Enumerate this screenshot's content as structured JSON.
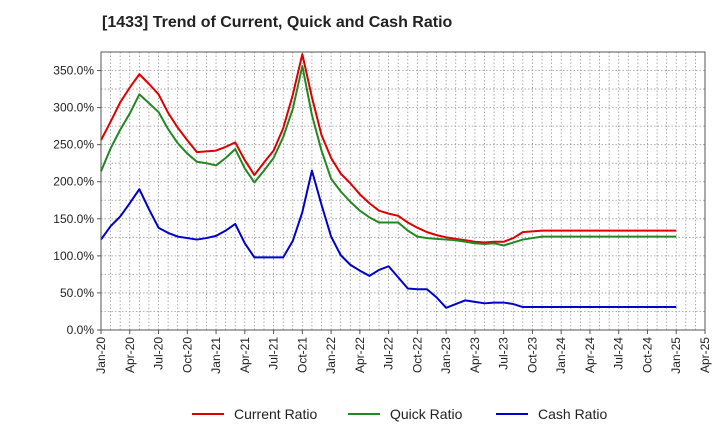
{
  "chart_data": {
    "type": "line",
    "title": "[1433]  Trend of Current, Quick and Cash Ratio",
    "xlabel": "",
    "ylabel": "",
    "x": [
      "Jan-20",
      "Feb-20",
      "Mar-20",
      "Apr-20",
      "May-20",
      "Jun-20",
      "Jul-20",
      "Aug-20",
      "Sep-20",
      "Oct-20",
      "Nov-20",
      "Dec-20",
      "Jan-21",
      "Feb-21",
      "Mar-21",
      "Apr-21",
      "May-21",
      "Jun-21",
      "Jul-21",
      "Aug-21",
      "Sep-21",
      "Oct-21",
      "Nov-21",
      "Dec-21",
      "Jan-22",
      "Feb-22",
      "Mar-22",
      "Apr-22",
      "May-22",
      "Jun-22",
      "Jul-22",
      "Aug-22",
      "Sep-22",
      "Oct-22",
      "Nov-22",
      "Dec-22",
      "Jan-23",
      "Feb-23",
      "Mar-23",
      "Apr-23",
      "May-23",
      "Jun-23",
      "Jul-23",
      "Aug-23",
      "Sep-23",
      "Oct-23",
      "Nov-23",
      "Dec-23",
      "Jan-24",
      "Feb-24",
      "Mar-24",
      "Apr-24",
      "May-24",
      "Jun-24",
      "Jul-24",
      "Aug-24",
      "Sep-24",
      "Oct-24",
      "Nov-24",
      "Dec-24",
      "Jan-25"
    ],
    "x_ticks": [
      "Jan-20",
      "Apr-20",
      "Jul-20",
      "Oct-20",
      "Jan-21",
      "Apr-21",
      "Jul-21",
      "Oct-21",
      "Jan-22",
      "Apr-22",
      "Jul-22",
      "Oct-22",
      "Jan-23",
      "Apr-23",
      "Jul-23",
      "Oct-23",
      "Jan-24",
      "Apr-24",
      "Jul-24",
      "Oct-24",
      "Jan-25",
      "Apr-25"
    ],
    "y_ticks": [
      "0.0%",
      "50.0%",
      "100.0%",
      "150.0%",
      "200.0%",
      "250.0%",
      "300.0%",
      "350.0%"
    ],
    "ylim": [
      0,
      375
    ],
    "grid": true,
    "legend_position": "bottom",
    "series": [
      {
        "name": "Current Ratio",
        "color": "#dd0000",
        "values": [
          256,
          281,
          307,
          327,
          345,
          332,
          318,
          293,
          273,
          256,
          240,
          241,
          242,
          247,
          253,
          229,
          209,
          226,
          242,
          272,
          317,
          372,
          314,
          263,
          232,
          211,
          198,
          183,
          171,
          161,
          157,
          154,
          145,
          138,
          132,
          128,
          125,
          123,
          121,
          119,
          118,
          119,
          119,
          124,
          132,
          133,
          134,
          134,
          134,
          134,
          134,
          134,
          134,
          134,
          134,
          134,
          134,
          134,
          134,
          134,
          134
        ]
      },
      {
        "name": "Quick Ratio",
        "color": "#228822",
        "values": [
          214,
          245,
          270,
          292,
          318,
          306,
          294,
          271,
          252,
          238,
          227,
          225,
          222,
          232,
          244,
          218,
          199,
          215,
          232,
          260,
          298,
          356,
          290,
          242,
          204,
          187,
          173,
          161,
          152,
          145,
          145,
          145,
          134,
          126,
          124,
          123,
          122,
          121,
          119,
          117,
          116,
          117,
          114,
          118,
          122,
          124,
          126,
          126,
          126,
          126,
          126,
          126,
          126,
          126,
          126,
          126,
          126,
          126,
          126,
          126,
          126
        ]
      },
      {
        "name": "Cash Ratio",
        "color": "#0000cc",
        "values": [
          122,
          140,
          153,
          171,
          190,
          163,
          138,
          131,
          126,
          124,
          122,
          124,
          127,
          134,
          143,
          117,
          98,
          98,
          98,
          98,
          120,
          159,
          215,
          169,
          126,
          101,
          88,
          80,
          73,
          81,
          86,
          71,
          56,
          55,
          55,
          44,
          30,
          35,
          40,
          38,
          36,
          37,
          37,
          35,
          31,
          31,
          31,
          31,
          31,
          31,
          31,
          31,
          31,
          31,
          31,
          31,
          31,
          31,
          31,
          31,
          31
        ]
      }
    ]
  }
}
